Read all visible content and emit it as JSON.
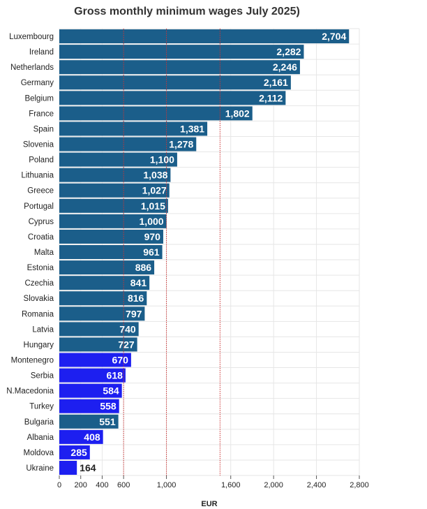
{
  "chart_data": {
    "type": "bar",
    "orientation": "horizontal",
    "title": "Gross monthly minimum wages July 2025)",
    "xlabel": "EUR",
    "ylabel": "",
    "xlim": [
      0,
      2800
    ],
    "x_ticks": [
      0,
      200,
      400,
      600,
      1000,
      1600,
      2000,
      2400,
      2800
    ],
    "x_tick_labels": [
      "0",
      "200",
      "400",
      "600",
      "1,000",
      "1,600",
      "2,000",
      "2,400",
      "2,800"
    ],
    "reference_lines": [
      600,
      1000,
      1500
    ],
    "grid": true,
    "colors": {
      "eu": "#1b5e8a",
      "non_eu": "#1d1ff0",
      "reference_line": "#cc3333",
      "grid": "#e6e6e6"
    },
    "categories": [
      "Luxembourg",
      "Ireland",
      "Netherlands",
      "Germany",
      "Belgium",
      "France",
      "Spain",
      "Slovenia",
      "Poland",
      "Lithuania",
      "Greece",
      "Portugal",
      "Cyprus",
      "Croatia",
      "Malta",
      "Estonia",
      "Czechia",
      "Slovakia",
      "Romania",
      "Latvia",
      "Hungary",
      "Montenegro",
      "Serbia",
      "N.Macedonia",
      "Turkey",
      "Bulgaria",
      "Albania",
      "Moldova",
      "Ukraine"
    ],
    "values": [
      2704,
      2282,
      2246,
      2161,
      2112,
      1802,
      1381,
      1278,
      1100,
      1038,
      1027,
      1015,
      1000,
      970,
      961,
      886,
      841,
      816,
      797,
      740,
      727,
      670,
      618,
      584,
      558,
      551,
      408,
      285,
      164
    ],
    "value_labels": [
      "2,704",
      "2,282",
      "2,246",
      "2,161",
      "2,112",
      "1,802",
      "1,381",
      "1,278",
      "1,100",
      "1,038",
      "1,027",
      "1,015",
      "1,000",
      "970",
      "961",
      "886",
      "841",
      "816",
      "797",
      "740",
      "727",
      "670",
      "618",
      "584",
      "558",
      "551",
      "408",
      "285",
      "164"
    ],
    "groups": [
      "eu",
      "eu",
      "eu",
      "eu",
      "eu",
      "eu",
      "eu",
      "eu",
      "eu",
      "eu",
      "eu",
      "eu",
      "eu",
      "eu",
      "eu",
      "eu",
      "eu",
      "eu",
      "eu",
      "eu",
      "eu",
      "non_eu",
      "non_eu",
      "non_eu",
      "non_eu",
      "eu",
      "non_eu",
      "non_eu",
      "non_eu"
    ]
  }
}
